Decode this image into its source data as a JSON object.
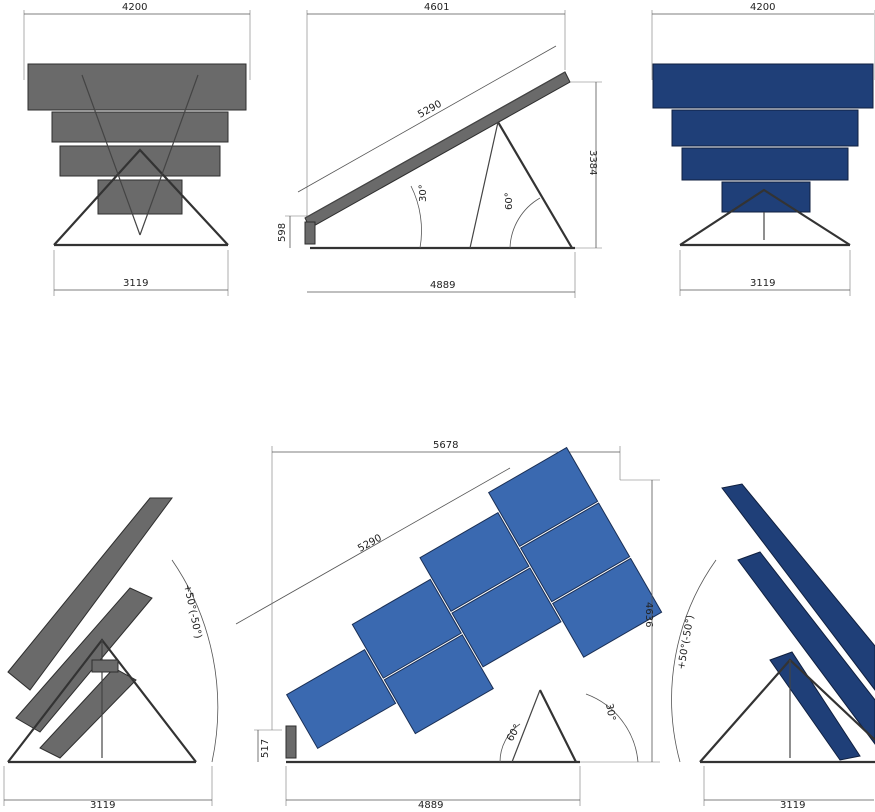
{
  "views": {
    "top_left": {
      "width_top": "4200",
      "width_base": "3119"
    },
    "top_middle": {
      "overall_length": "4601",
      "panel_length": "5290",
      "height": "3384",
      "base_height": "598",
      "base_length": "4889",
      "angle_inner": "30°",
      "angle_outer": "60°"
    },
    "top_right": {
      "width_top": "4200",
      "width_base": "3119"
    },
    "bottom_left": {
      "width_base": "3119",
      "rotation": "+50°(-50°)"
    },
    "bottom_middle": {
      "overall_length": "5678",
      "panel_length": "5290",
      "height": "4636",
      "base_height": "517",
      "base_length": "4889",
      "angle_inner": "60°",
      "angle_outer": "30°"
    },
    "bottom_right": {
      "width_base": "3119",
      "rotation": "+50°(-50°)"
    }
  },
  "colors": {
    "panel_gray": "#6a6a6a",
    "panel_blue_dark": "#1f3f78",
    "panel_blue_light": "#3a69b0",
    "frame": "#333333"
  }
}
